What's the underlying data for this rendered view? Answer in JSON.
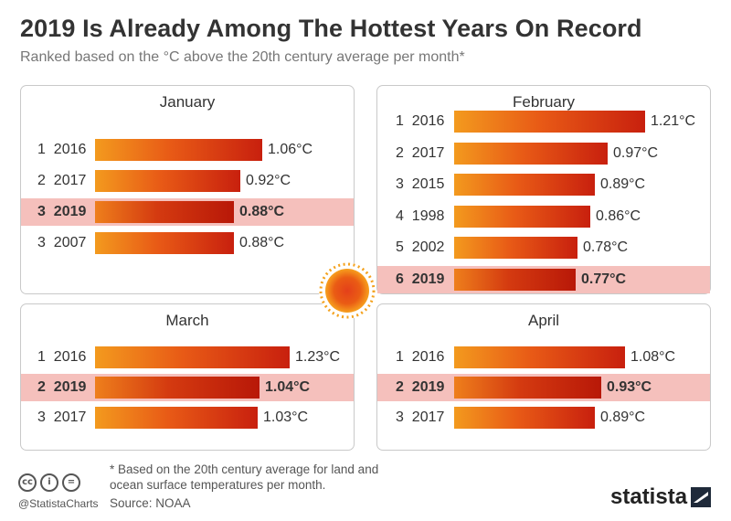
{
  "title": "2019 Is Already Among The Hottest Years On Record",
  "subtitle": "Ranked based on the °C above the 20th century average per month*",
  "chart_data": [
    {
      "type": "bar",
      "title": "January",
      "unit": "°C",
      "highlight_color": "#f5c0bc",
      "bar_color": "#e85a16",
      "rows": [
        {
          "rank": "1",
          "year": "2016",
          "value": 1.06,
          "label": "1.06°C",
          "highlight": false
        },
        {
          "rank": "2",
          "year": "2017",
          "value": 0.92,
          "label": "0.92°C",
          "highlight": false
        },
        {
          "rank": "3",
          "year": "2019",
          "value": 0.88,
          "label": "0.88°C",
          "highlight": true
        },
        {
          "rank": "3",
          "year": "2007",
          "value": 0.88,
          "label": "0.88°C",
          "highlight": false
        }
      ]
    },
    {
      "type": "bar",
      "title": "February",
      "unit": "°C",
      "highlight_color": "#f5c0bc",
      "bar_color": "#e85a16",
      "rows": [
        {
          "rank": "1",
          "year": "2016",
          "value": 1.21,
          "label": "1.21°C",
          "highlight": false
        },
        {
          "rank": "2",
          "year": "2017",
          "value": 0.97,
          "label": "0.97°C",
          "highlight": false
        },
        {
          "rank": "3",
          "year": "2015",
          "value": 0.89,
          "label": "0.89°C",
          "highlight": false
        },
        {
          "rank": "4",
          "year": "1998",
          "value": 0.86,
          "label": "0.86°C",
          "highlight": false
        },
        {
          "rank": "5",
          "year": "2002",
          "value": 0.78,
          "label": "0.78°C",
          "highlight": false
        },
        {
          "rank": "6",
          "year": "2019",
          "value": 0.77,
          "label": "0.77°C",
          "highlight": true
        }
      ]
    },
    {
      "type": "bar",
      "title": "March",
      "unit": "°C",
      "highlight_color": "#f5c0bc",
      "bar_color": "#e85a16",
      "rows": [
        {
          "rank": "1",
          "year": "2016",
          "value": 1.23,
          "label": "1.23°C",
          "highlight": false
        },
        {
          "rank": "2",
          "year": "2019",
          "value": 1.04,
          "label": "1.04°C",
          "highlight": true
        },
        {
          "rank": "3",
          "year": "2017",
          "value": 1.03,
          "label": "1.03°C",
          "highlight": false
        }
      ]
    },
    {
      "type": "bar",
      "title": "April",
      "unit": "°C",
      "highlight_color": "#f5c0bc",
      "bar_color": "#e85a16",
      "rows": [
        {
          "rank": "1",
          "year": "2016",
          "value": 1.08,
          "label": "1.08°C",
          "highlight": false
        },
        {
          "rank": "2",
          "year": "2019",
          "value": 0.93,
          "label": "0.93°C",
          "highlight": true
        },
        {
          "rank": "3",
          "year": "2017",
          "value": 0.89,
          "label": "0.89°C",
          "highlight": false
        }
      ]
    }
  ],
  "footnote": "* Based on the 20th century average for land and ocean surface temperatures per month.",
  "source": "Source: NOAA",
  "handle": "@StatistaCharts",
  "brand": "statista",
  "license_icons": [
    "cc-icon",
    "attribution-icon",
    "no-derivatives-icon"
  ],
  "sun_icon": "sun-icon"
}
